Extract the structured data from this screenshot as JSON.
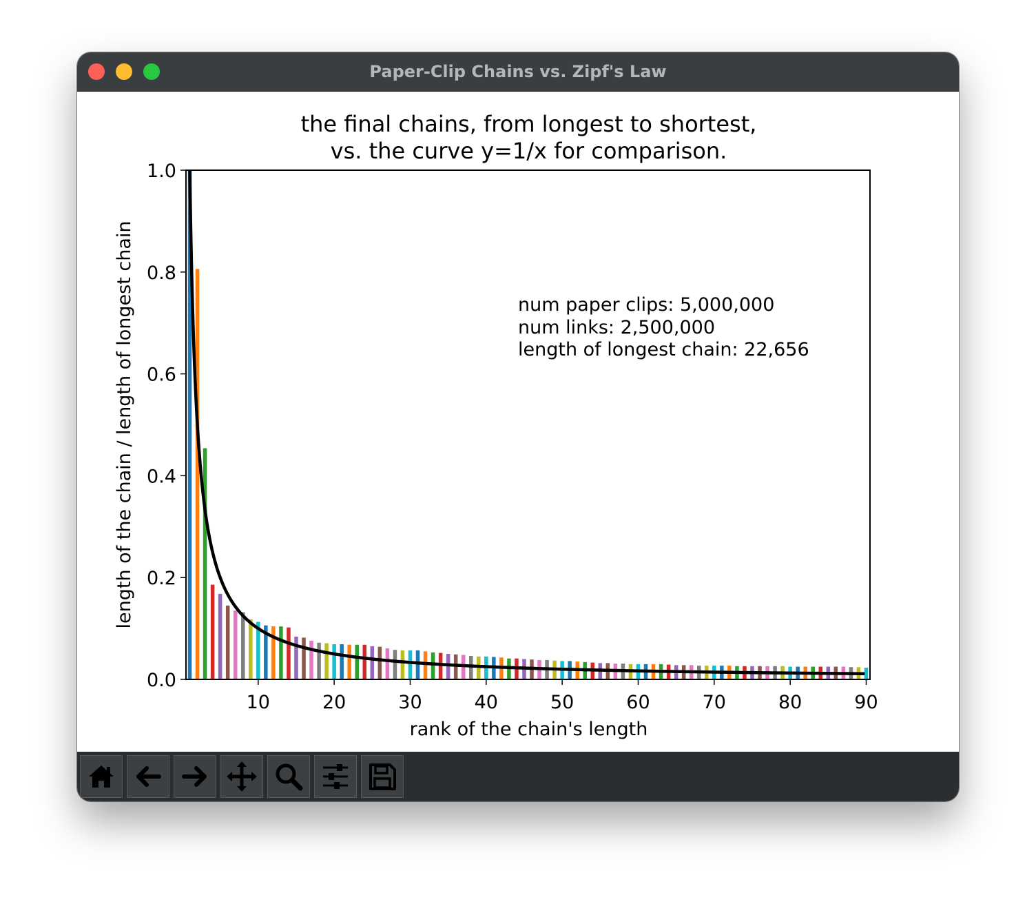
{
  "window": {
    "title": "Paper-Clip Chains vs. Zipf's Law"
  },
  "toolbar": {
    "buttons": [
      {
        "name": "home-button",
        "icon": "home-icon"
      },
      {
        "name": "back-button",
        "icon": "arrow-left-icon"
      },
      {
        "name": "forward-button",
        "icon": "arrow-right-icon"
      },
      {
        "name": "pan-button",
        "icon": "move-icon"
      },
      {
        "name": "zoom-button",
        "icon": "magnifier-icon"
      },
      {
        "name": "configure-subplots-button",
        "icon": "sliders-icon"
      },
      {
        "name": "save-button",
        "icon": "floppy-disk-icon"
      }
    ]
  },
  "chart_data": {
    "type": "bar",
    "title_line1": "the final chains, from longest to shortest,",
    "title_line2": "vs. the curve y=1/x for comparison.",
    "xlabel": "rank of the chain's length",
    "ylabel": "length of the chain / length of longest chain",
    "xlim": [
      0.5,
      90.5
    ],
    "ylim": [
      0,
      1.0
    ],
    "xticks": [
      10,
      20,
      30,
      40,
      50,
      60,
      70,
      80,
      90
    ],
    "yticks": [
      0.0,
      0.2,
      0.4,
      0.6,
      0.8,
      1.0
    ],
    "annotation": [
      "num paper clips: 5,000,000",
      "num links: 2,500,000",
      "length of longest chain: 22,656"
    ],
    "curve": {
      "label": "y=1/x",
      "color": "#000000"
    },
    "palette": [
      "#1f77b4",
      "#ff7f0e",
      "#2ca02c",
      "#d62728",
      "#9467bd",
      "#8c564b",
      "#e377c2",
      "#7f7f7f",
      "#bcbd22",
      "#17becf"
    ],
    "ranks": [
      1,
      2,
      3,
      4,
      5,
      6,
      7,
      8,
      9,
      10,
      11,
      12,
      13,
      14,
      15,
      16,
      17,
      18,
      19,
      20,
      21,
      22,
      23,
      24,
      25,
      26,
      27,
      28,
      29,
      30,
      31,
      32,
      33,
      34,
      35,
      36,
      37,
      38,
      39,
      40,
      41,
      42,
      43,
      44,
      45,
      46,
      47,
      48,
      49,
      50,
      51,
      52,
      53,
      54,
      55,
      56,
      57,
      58,
      59,
      60,
      61,
      62,
      63,
      64,
      65,
      66,
      67,
      68,
      69,
      70,
      71,
      72,
      73,
      74,
      75,
      76,
      77,
      78,
      79,
      80,
      81,
      82,
      83,
      84,
      85,
      86,
      87,
      88,
      89,
      90
    ],
    "values": [
      1.0,
      0.806,
      0.454,
      0.186,
      0.168,
      0.145,
      0.135,
      0.132,
      0.118,
      0.113,
      0.106,
      0.104,
      0.104,
      0.102,
      0.084,
      0.082,
      0.076,
      0.072,
      0.071,
      0.069,
      0.069,
      0.068,
      0.068,
      0.068,
      0.065,
      0.064,
      0.061,
      0.058,
      0.057,
      0.057,
      0.057,
      0.055,
      0.053,
      0.052,
      0.05,
      0.049,
      0.048,
      0.046,
      0.045,
      0.045,
      0.044,
      0.043,
      0.041,
      0.041,
      0.04,
      0.039,
      0.038,
      0.038,
      0.037,
      0.036,
      0.036,
      0.035,
      0.034,
      0.033,
      0.032,
      0.032,
      0.031,
      0.031,
      0.03,
      0.03,
      0.03,
      0.03,
      0.03,
      0.029,
      0.028,
      0.028,
      0.028,
      0.027,
      0.027,
      0.027,
      0.027,
      0.027,
      0.026,
      0.026,
      0.026,
      0.026,
      0.026,
      0.026,
      0.026,
      0.025,
      0.025,
      0.025,
      0.025,
      0.025,
      0.025,
      0.025,
      0.025,
      0.024,
      0.024,
      0.023
    ]
  }
}
